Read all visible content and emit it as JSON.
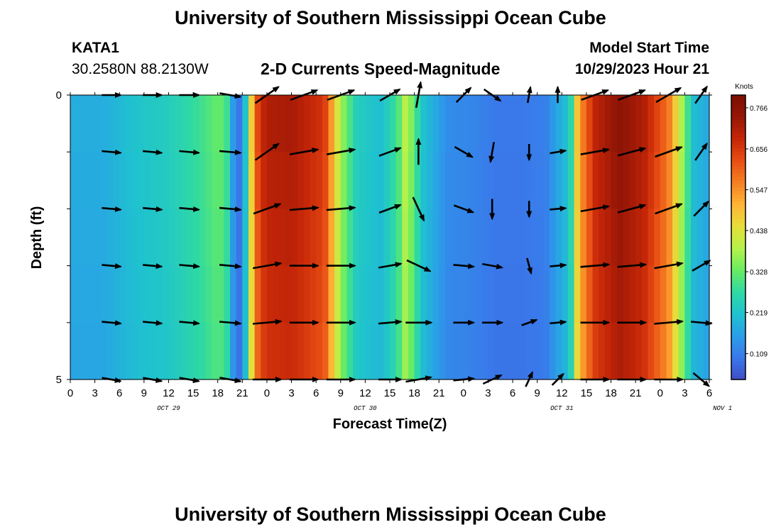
{
  "page_title": "University of Southern Mississippi Ocean Cube",
  "station": {
    "id": "KATA1",
    "coords": "30.2580N  88.2130W"
  },
  "model": {
    "start_label": "Model Start Time",
    "start_value": "10/29/2023 Hour 21"
  },
  "chart_data": {
    "type": "heatmap",
    "title": "2-D Currents Speed-Magnitude",
    "xlabel": "Forecast Time(Z)",
    "ylabel": "Depth (ft)",
    "x_tick_labels": [
      "0",
      "3",
      "6",
      "9",
      "12",
      "15",
      "18",
      "21",
      "0",
      "3",
      "6",
      "9",
      "12",
      "15",
      "18",
      "21",
      "0",
      "3",
      "6",
      "9",
      "12",
      "15",
      "18",
      "21",
      "0",
      "3",
      "6"
    ],
    "date_labels": [
      "OCT 29",
      "OCT 30",
      "OCT 31",
      "NOV 1"
    ],
    "date_label_tick_index": [
      4,
      12,
      20,
      27
    ],
    "y_tick_labels": [
      "0",
      "5"
    ],
    "ylim": [
      0,
      5
    ],
    "x_forecast_hours": [
      0,
      78
    ],
    "colorbar": {
      "units": "Knots",
      "tick_labels": [
        "0.766",
        "0.656",
        "0.547",
        "0.438",
        "0.328",
        "0.219",
        "0.109"
      ],
      "tick_values": [
        0.766,
        0.656,
        0.547,
        0.438,
        0.328,
        0.219,
        0.109
      ],
      "range": [
        0.04,
        0.8
      ],
      "palette": [
        "#3f4fc8",
        "#3a78ea",
        "#2a9fe8",
        "#1fc2cf",
        "#2fd9a3",
        "#69ec62",
        "#b5f24a",
        "#e6de3a",
        "#ffb435",
        "#f57f22",
        "#e84e14",
        "#c52608",
        "#961606",
        "#7a0f02"
      ]
    },
    "speed_profile": {
      "hours": [
        0,
        4,
        8,
        12,
        16,
        18,
        19,
        20,
        21,
        22,
        23,
        24,
        27,
        31,
        33,
        35,
        38,
        40,
        41,
        43,
        46,
        49,
        52,
        55,
        58,
        61,
        62,
        64,
        67,
        70,
        73,
        75,
        76,
        77,
        78
      ],
      "knots": [
        0.18,
        0.18,
        0.22,
        0.24,
        0.29,
        0.33,
        0.31,
        0.13,
        0.08,
        0.45,
        0.66,
        0.71,
        0.72,
        0.66,
        0.38,
        0.24,
        0.21,
        0.3,
        0.41,
        0.22,
        0.13,
        0.12,
        0.1,
        0.1,
        0.11,
        0.23,
        0.52,
        0.69,
        0.76,
        0.71,
        0.58,
        0.34,
        0.21,
        0.19,
        0.17
      ]
    },
    "vectors": {
      "hours": [
        5,
        10,
        14.5,
        19.5,
        24,
        28.5,
        33,
        39,
        42.5,
        48,
        51.5,
        56,
        59.5,
        64,
        68.5,
        73,
        77
      ],
      "depths_ft": [
        0,
        1,
        2,
        3,
        4,
        5
      ],
      "angles_deg": [
        [
          0,
          0,
          0,
          10,
          -35,
          -20,
          -20,
          -30,
          -80,
          -45,
          35,
          -80,
          -90,
          -20,
          -20,
          -30,
          -55
        ],
        [
          5,
          5,
          5,
          5,
          -35,
          -10,
          -10,
          -20,
          -90,
          30,
          100,
          90,
          -10,
          -10,
          -15,
          -20,
          -55
        ],
        [
          5,
          5,
          5,
          5,
          -20,
          -5,
          -5,
          -20,
          65,
          20,
          90,
          90,
          -5,
          -10,
          -15,
          -20,
          -45
        ],
        [
          5,
          5,
          5,
          5,
          -10,
          0,
          0,
          -10,
          25,
          5,
          10,
          75,
          -5,
          -5,
          -5,
          -10,
          -30
        ],
        [
          5,
          5,
          5,
          5,
          -5,
          0,
          0,
          -5,
          0,
          0,
          0,
          -20,
          -5,
          0,
          0,
          -5,
          5
        ],
        [
          10,
          10,
          10,
          10,
          0,
          0,
          0,
          0,
          -10,
          -5,
          -25,
          -65,
          -45,
          0,
          0,
          0,
          40
        ]
      ],
      "magnitude_knots": [
        0.2,
        0.2,
        0.22,
        0.26,
        0.66,
        0.72,
        0.66,
        0.3,
        0.38,
        0.24,
        0.23,
        0.12,
        0.12,
        0.73,
        0.74,
        0.62,
        0.24
      ]
    }
  }
}
